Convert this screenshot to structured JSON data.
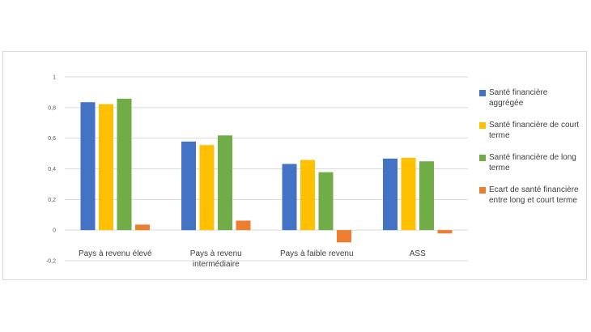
{
  "chart_data": {
    "type": "bar",
    "title": "",
    "xlabel": "",
    "ylabel": "",
    "ylim": [
      -0.2,
      1
    ],
    "yticks": [
      "-0,2",
      "0",
      "0,2",
      "0,4",
      "0,6",
      "0,8",
      "1"
    ],
    "grid": true,
    "legend_position": "right",
    "categories": [
      [
        "Pays à revenu élevé"
      ],
      [
        "Pays à revenu",
        "intermédiaire"
      ],
      [
        "Pays à faible revenu"
      ],
      [
        "ASS"
      ]
    ],
    "series": [
      {
        "name": "Santé financière agrégée",
        "label_lines": [
          "Santé financière",
          "aggrégée"
        ],
        "color": "#4472C4",
        "values": [
          0.835,
          0.578,
          0.432,
          0.467
        ]
      },
      {
        "name": "Santé financière de court terme",
        "label_lines": [
          "Santé financière de court",
          "terme"
        ],
        "color": "#FFC000",
        "values": [
          0.822,
          0.555,
          0.458,
          0.472
        ]
      },
      {
        "name": "Santé financière de long terme",
        "label_lines": [
          "Santé financière de long",
          "terme"
        ],
        "color": "#70AD47",
        "values": [
          0.858,
          0.618,
          0.378,
          0.449
        ]
      },
      {
        "name": "Ecart de santé financière entre long et court terme",
        "label_lines": [
          "Ecart de santé financière",
          "entre long et court terme"
        ],
        "color": "#ED7D31",
        "values": [
          0.036,
          0.062,
          -0.08,
          -0.022
        ]
      }
    ]
  }
}
